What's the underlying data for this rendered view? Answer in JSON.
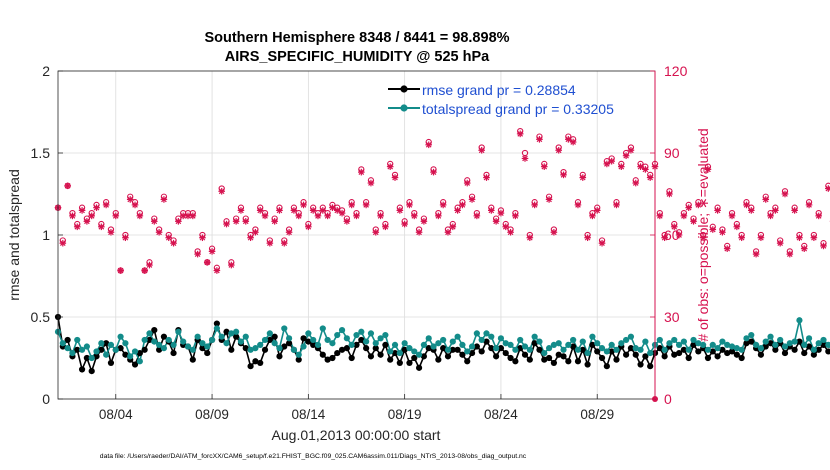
{
  "chart_data": {
    "type": "line",
    "title": [
      "Southern Hemisphere 8348 / 8441 = 98.898%",
      "AIRS_SPECIFIC_HUMIDITY @ 525 hPa"
    ],
    "xlabel": "Aug.01,2013 00:00:00 start",
    "ylabel": "rmse and totalspread",
    "ylabel_right": "# of obs: o=possible; ∗=evaluated",
    "footer": "data file: /Users/raeder/DAI/ATM_forcXX/CAM6_setup/f.e21.FHIST_BGC.f09_025.CAM6assim.011/Diags_NTrS_2013-08/obs_diag_output.nc",
    "xlim": [
      1,
      32
    ],
    "ylim": [
      0,
      2
    ],
    "ylim_right": [
      0,
      120
    ],
    "x_ticks": [
      4,
      9,
      14,
      19,
      24,
      29
    ],
    "x_tick_labels": [
      "08/04",
      "08/09",
      "08/14",
      "08/19",
      "08/24",
      "08/29"
    ],
    "y_ticks": [
      0,
      0.5,
      1,
      1.5,
      2
    ],
    "y_tick_labels": [
      "0",
      "0.5",
      "1",
      "1.5",
      "2"
    ],
    "y_right_ticks": [
      0,
      30,
      60,
      90,
      120
    ],
    "y_right_tick_labels": [
      "0",
      "30",
      "60",
      "90",
      "120"
    ],
    "grid": true,
    "legend_position": "top-right",
    "legend": [
      {
        "label": "rmse grand pr = 0.28854",
        "color": "#000000"
      },
      {
        "label": "totalspread grand pr = 0.33205",
        "color": "#138c8a"
      }
    ],
    "colors": {
      "rmse": "#000000",
      "spread": "#138c8a",
      "obs": "#d6124f",
      "legend_text": "#1f4fd1"
    },
    "x_start": 1.0,
    "x_step": 0.25,
    "series": [
      {
        "name": "rmse grand pr = 0.28854",
        "axis": "left",
        "values": [
          0.5,
          0.32,
          0.36,
          0.26,
          0.3,
          0.18,
          0.25,
          0.17,
          0.26,
          0.3,
          0.34,
          0.22,
          0.3,
          0.31,
          0.27,
          0.24,
          0.21,
          0.28,
          0.3,
          0.36,
          0.42,
          0.3,
          0.38,
          0.35,
          0.28,
          0.42,
          0.33,
          0.32,
          0.24,
          0.36,
          0.31,
          0.28,
          0.36,
          0.46,
          0.36,
          0.41,
          0.3,
          0.38,
          0.34,
          0.31,
          0.2,
          0.23,
          0.22,
          0.3,
          0.36,
          0.38,
          0.26,
          0.32,
          0.34,
          0.3,
          0.24,
          0.37,
          0.35,
          0.33,
          0.31,
          0.27,
          0.24,
          0.25,
          0.28,
          0.3,
          0.31,
          0.25,
          0.33,
          0.36,
          0.31,
          0.26,
          0.31,
          0.27,
          0.33,
          0.24,
          0.28,
          0.22,
          0.3,
          0.22,
          0.25,
          0.19,
          0.26,
          0.31,
          0.3,
          0.24,
          0.31,
          0.26,
          0.3,
          0.3,
          0.27,
          0.23,
          0.28,
          0.32,
          0.29,
          0.35,
          0.31,
          0.26,
          0.31,
          0.28,
          0.25,
          0.23,
          0.31,
          0.27,
          0.24,
          0.34,
          0.3,
          0.24,
          0.25,
          0.22,
          0.27,
          0.26,
          0.23,
          0.32,
          0.23,
          0.3,
          0.21,
          0.33,
          0.29,
          0.25,
          0.2,
          0.29,
          0.24,
          0.32,
          0.27,
          0.31,
          0.27,
          0.21,
          0.26,
          0.2,
          0.28,
          0.31,
          0.26,
          0.32,
          0.27,
          0.28,
          0.3,
          0.25,
          0.33,
          0.29,
          0.31,
          0.25,
          0.29,
          0.26,
          0.3,
          0.28,
          0.29,
          0.27,
          0.25,
          0.34,
          0.35,
          0.31,
          0.27,
          0.32,
          0.34,
          0.3,
          0.34,
          0.28,
          0.32,
          0.3,
          0.35,
          0.28,
          0.32,
          0.27,
          0.3,
          0.33,
          0.29,
          0.26,
          0.31,
          0.37,
          0.3,
          0.25,
          0.36,
          0.28,
          0.33,
          0.24,
          0.32,
          0.28,
          0.3,
          0.26,
          0.23,
          0.28,
          0.33,
          0.26,
          0.3,
          0.34,
          0.32,
          0.23
        ]
      },
      {
        "name": "totalspread grand pr = 0.33205",
        "axis": "left",
        "values": [
          0.41,
          0.34,
          0.31,
          0.28,
          0.36,
          0.3,
          0.32,
          0.25,
          0.29,
          0.34,
          0.27,
          0.33,
          0.3,
          0.38,
          0.34,
          0.26,
          0.29,
          0.23,
          0.36,
          0.4,
          0.35,
          0.33,
          0.31,
          0.36,
          0.33,
          0.41,
          0.35,
          0.32,
          0.3,
          0.38,
          0.34,
          0.32,
          0.36,
          0.43,
          0.38,
          0.34,
          0.4,
          0.41,
          0.35,
          0.38,
          0.3,
          0.31,
          0.33,
          0.36,
          0.4,
          0.34,
          0.31,
          0.43,
          0.37,
          0.3,
          0.27,
          0.32,
          0.4,
          0.36,
          0.33,
          0.43,
          0.36,
          0.34,
          0.39,
          0.42,
          0.37,
          0.33,
          0.39,
          0.41,
          0.35,
          0.4,
          0.34,
          0.37,
          0.39,
          0.29,
          0.33,
          0.28,
          0.34,
          0.31,
          0.29,
          0.27,
          0.33,
          0.37,
          0.32,
          0.34,
          0.36,
          0.3,
          0.35,
          0.38,
          0.33,
          0.29,
          0.32,
          0.4,
          0.36,
          0.4,
          0.38,
          0.31,
          0.37,
          0.34,
          0.33,
          0.3,
          0.36,
          0.32,
          0.3,
          0.38,
          0.35,
          0.28,
          0.31,
          0.33,
          0.34,
          0.3,
          0.33,
          0.36,
          0.3,
          0.35,
          0.28,
          0.38,
          0.34,
          0.31,
          0.29,
          0.33,
          0.3,
          0.34,
          0.36,
          0.38,
          0.31,
          0.3,
          0.35,
          0.28,
          0.33,
          0.36,
          0.3,
          0.34,
          0.36,
          0.33,
          0.35,
          0.3,
          0.36,
          0.34,
          0.33,
          0.3,
          0.33,
          0.31,
          0.35,
          0.33,
          0.32,
          0.31,
          0.3,
          0.37,
          0.39,
          0.33,
          0.31,
          0.35,
          0.38,
          0.33,
          0.36,
          0.32,
          0.34,
          0.35,
          0.48,
          0.33,
          0.37,
          0.3,
          0.34,
          0.36,
          0.33,
          0.29,
          0.34,
          0.42,
          0.36,
          0.29,
          0.38,
          0.31,
          0.35,
          0.29,
          0.36,
          0.31,
          0.34,
          0.31,
          0.28,
          0.32,
          0.38,
          0.31,
          0.35,
          0.37,
          0.35,
          0.28
        ]
      },
      {
        "name": "possible",
        "axis": "right",
        "marker": "o",
        "values": [
          70,
          58,
          78,
          68,
          64,
          70,
          66,
          68,
          71,
          64,
          72,
          62,
          68,
          47,
          60,
          74,
          72,
          68,
          47,
          50,
          66,
          62,
          74,
          60,
          58,
          66,
          68,
          68,
          68,
          54,
          60,
          50,
          55,
          48,
          77,
          65,
          50,
          66,
          70,
          66,
          60,
          62,
          70,
          68,
          58,
          66,
          70,
          58,
          62,
          70,
          68,
          72,
          64,
          70,
          68,
          70,
          68,
          71,
          70,
          69,
          66,
          72,
          68,
          84,
          72,
          80,
          62,
          68,
          64,
          86,
          82,
          70,
          65,
          72,
          68,
          62,
          66,
          94,
          84,
          68,
          72,
          62,
          64,
          70,
          72,
          80,
          74,
          68,
          92,
          82,
          70,
          66,
          69,
          64,
          62,
          68,
          98,
          90,
          60,
          72,
          96,
          86,
          74,
          62,
          92,
          83,
          96,
          95,
          72,
          82,
          60,
          68,
          70,
          58,
          87,
          88,
          72,
          86,
          90,
          92,
          80,
          86,
          85,
          82,
          86,
          68,
          60,
          76,
          64,
          61,
          68,
          71,
          66,
          72,
          60,
          85,
          63,
          70,
          62,
          56,
          68,
          64,
          60,
          72,
          70,
          54,
          60,
          74,
          68,
          70,
          58,
          76,
          54,
          70,
          60,
          56,
          72,
          60,
          68,
          57,
          78,
          66,
          55,
          73,
          58,
          62,
          70,
          65,
          58
        ]
      },
      {
        "name": "evaluated",
        "axis": "right",
        "marker": "*",
        "values": [
          70,
          57,
          78,
          67,
          63,
          69,
          65,
          67,
          70,
          63,
          71,
          61,
          67,
          47,
          59,
          73,
          71,
          67,
          47,
          49,
          65,
          61,
          73,
          59,
          57,
          65,
          67,
          67,
          67,
          53,
          59,
          50,
          54,
          47,
          76,
          64,
          49,
          65,
          69,
          65,
          59,
          61,
          69,
          67,
          57,
          65,
          69,
          57,
          61,
          69,
          67,
          71,
          63,
          69,
          67,
          69,
          67,
          70,
          69,
          68,
          65,
          71,
          67,
          83,
          71,
          79,
          61,
          67,
          63,
          85,
          81,
          69,
          64,
          71,
          67,
          61,
          65,
          93,
          83,
          67,
          71,
          61,
          63,
          69,
          71,
          79,
          73,
          67,
          91,
          81,
          69,
          65,
          68,
          63,
          61,
          67,
          97,
          88,
          59,
          71,
          95,
          85,
          73,
          61,
          91,
          82,
          95,
          94,
          71,
          81,
          59,
          67,
          69,
          57,
          86,
          87,
          71,
          85,
          89,
          91,
          79,
          85,
          84,
          81,
          85,
          67,
          59,
          75,
          63,
          60,
          67,
          70,
          65,
          71,
          59,
          84,
          62,
          69,
          61,
          55,
          67,
          63,
          59,
          71,
          69,
          53,
          59,
          73,
          67,
          69,
          57,
          75,
          53,
          69,
          59,
          55,
          71,
          59,
          67,
          56,
          77,
          65,
          54,
          72,
          57,
          61,
          69,
          64,
          57
        ]
      }
    ]
  }
}
